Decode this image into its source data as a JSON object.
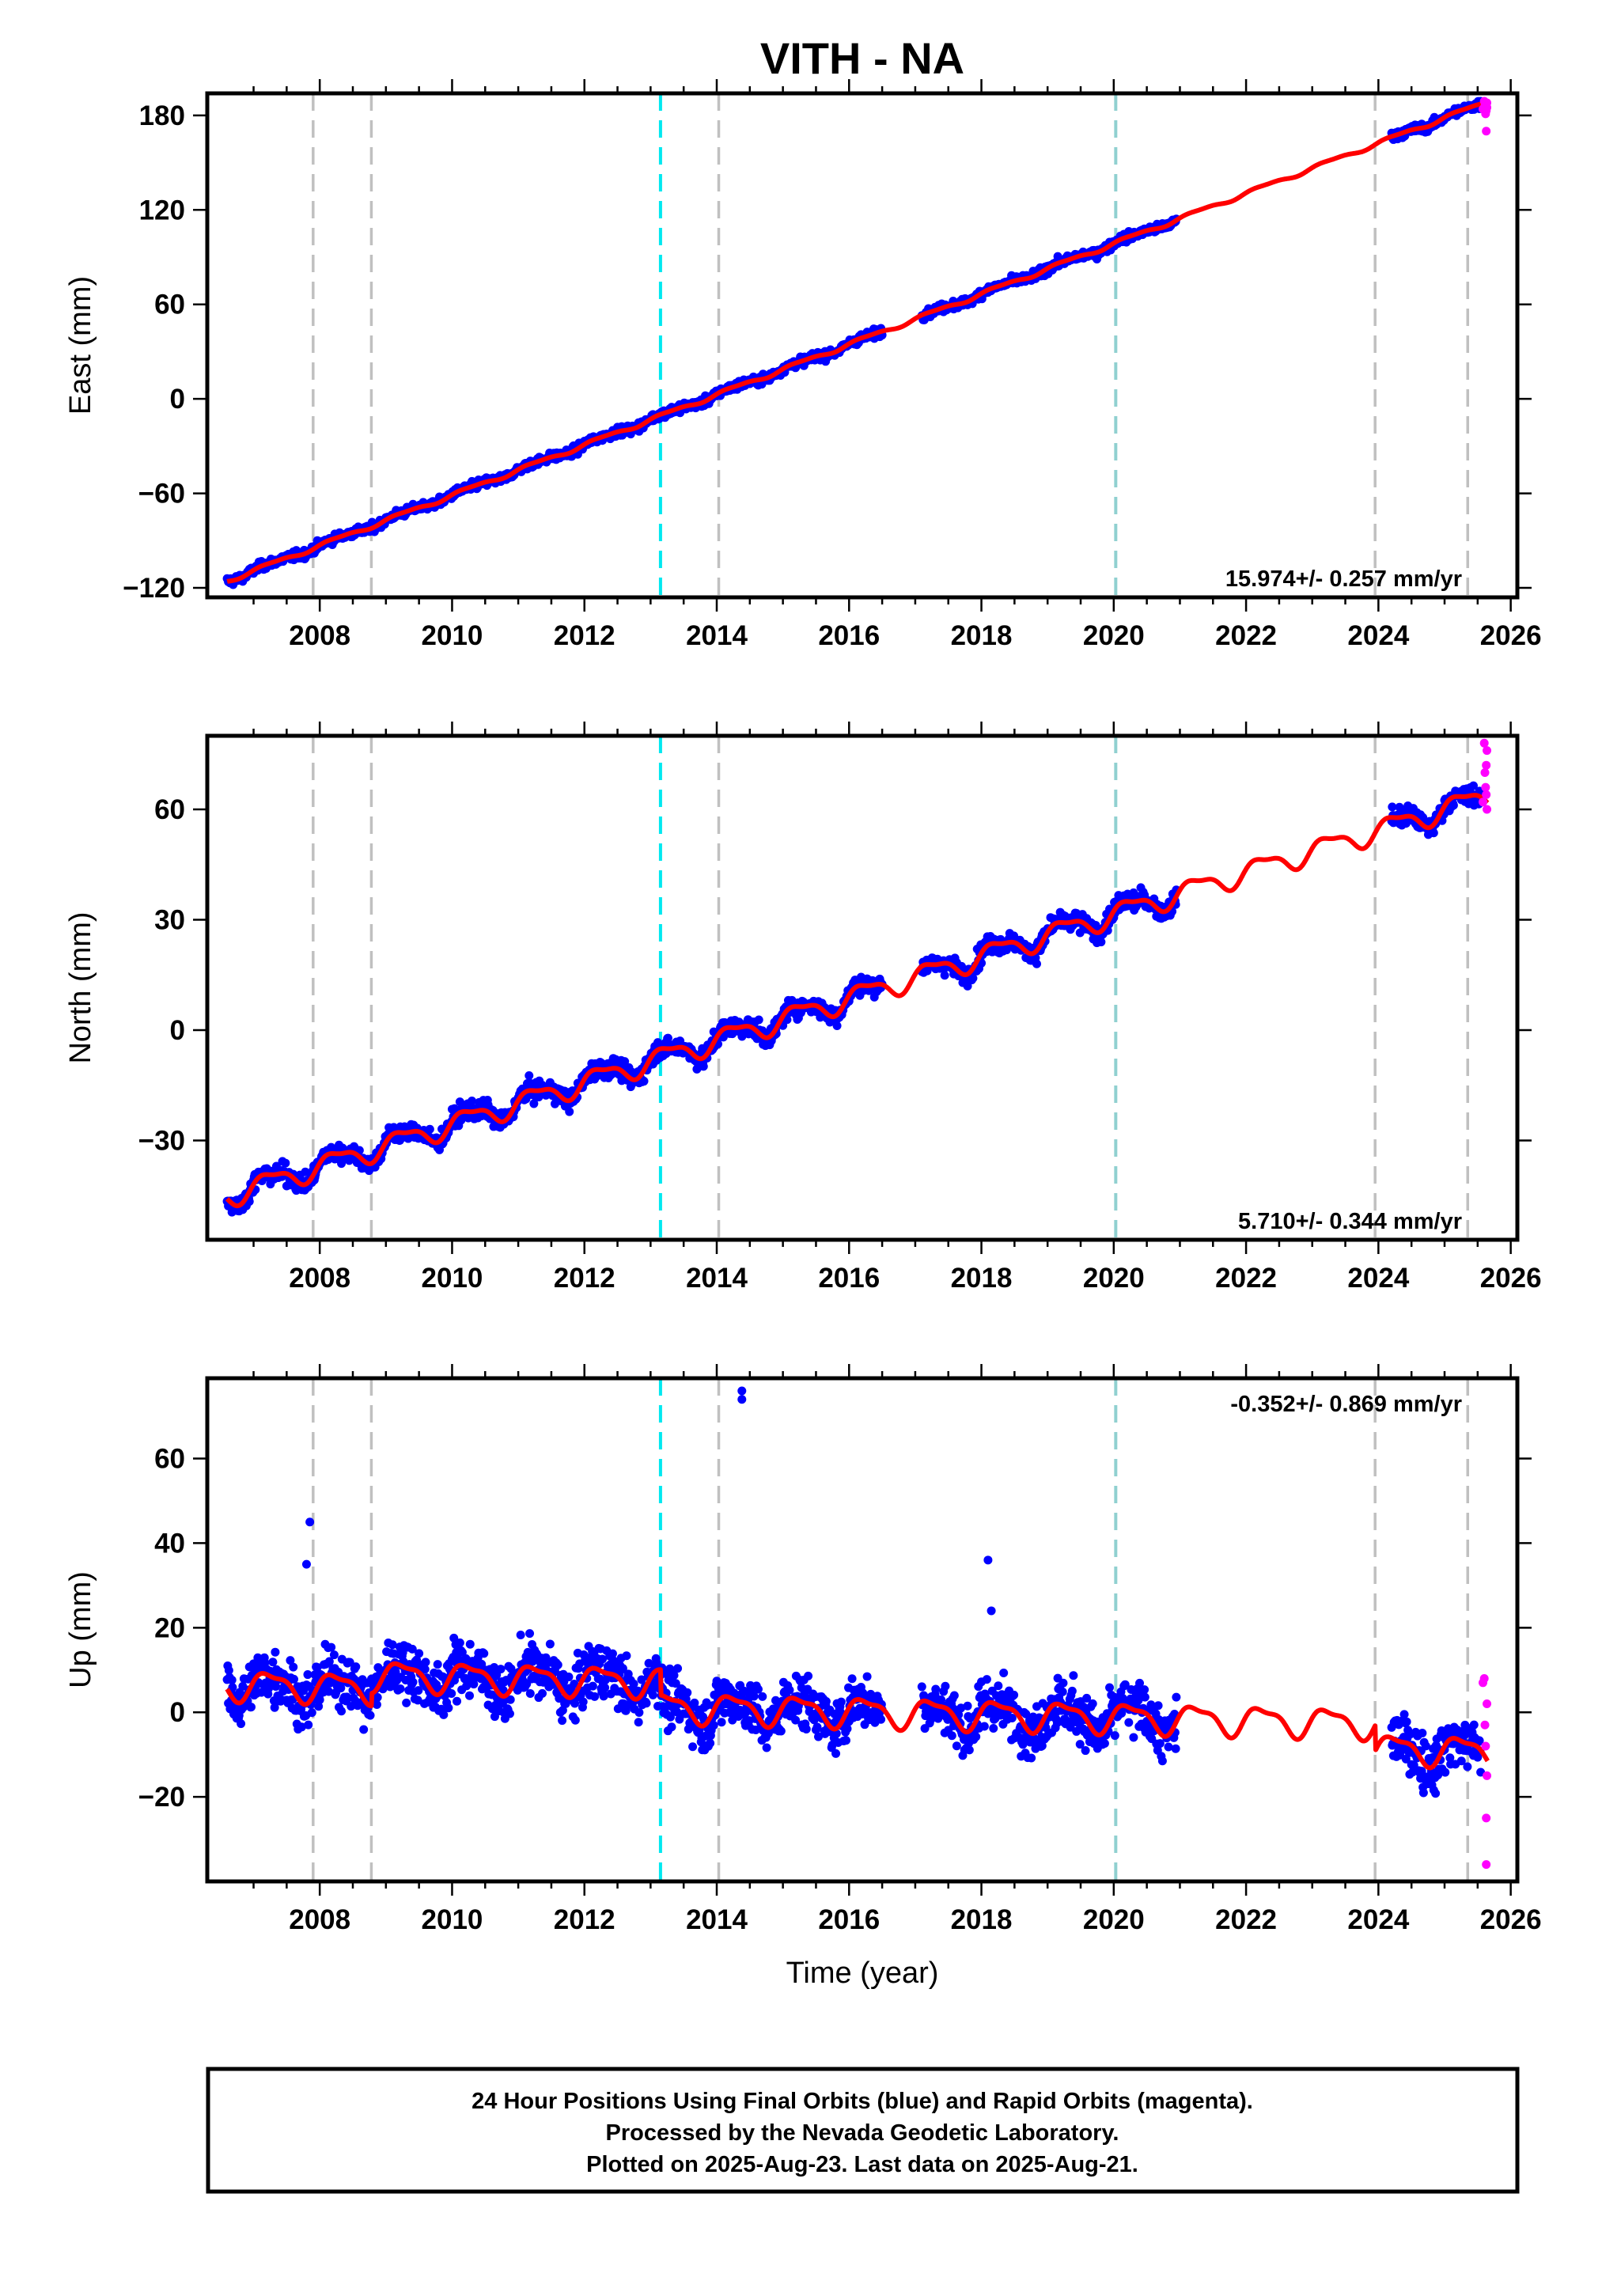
{
  "title": "VITH - NA",
  "xlabel": "Time (year)",
  "footer": [
    "24 Hour Positions Using Final Orbits (blue) and Rapid Orbits (magenta).",
    "Processed by the Nevada Geodetic Laboratory.",
    "Plotted on 2025-Aug-23. Last data on 2025-Aug-21."
  ],
  "colors": {
    "final": "#0000ff",
    "rapid": "#ff00ff",
    "model": "#ff0000",
    "event_gray": "#c0c0c0",
    "event_cyan": "#00e8f0",
    "event_teal": "#90d0d0"
  },
  "chart_data": [
    {
      "type": "scatter",
      "id": "east",
      "ylabel": "East (mm)",
      "rate_label": "15.974+/- 0.257 mm/yr",
      "rate": 15.974,
      "ylim": [
        -126,
        194
      ],
      "yticks": [
        -120,
        -60,
        0,
        60,
        120,
        180
      ],
      "xlim": [
        2006.3,
        2026.1
      ],
      "xticks": [
        2008,
        2010,
        2012,
        2014,
        2016,
        2018,
        2020,
        2022,
        2024,
        2026
      ],
      "rate_position": "bottom-right",
      "trend_start": [
        2006.6,
        -115.5
      ],
      "seasonal_amp": 1.2,
      "noise": 2.6,
      "offsets": [],
      "data_ranges": [
        [
          2006.6,
          2016.5
        ],
        [
          2017.1,
          2020.95
        ],
        [
          2024.2,
          2025.55
        ]
      ],
      "outliers": [],
      "rapid_points": [
        [
          2025.58,
          184
        ],
        [
          2025.6,
          189
        ],
        [
          2025.61,
          186
        ],
        [
          2025.62,
          181
        ],
        [
          2025.63,
          183
        ],
        [
          2025.63,
          170
        ],
        [
          2025.64,
          188
        ],
        [
          2025.64,
          185
        ]
      ],
      "events": [
        {
          "x": 2007.9,
          "kind": "gray"
        },
        {
          "x": 2008.78,
          "kind": "gray"
        },
        {
          "x": 2013.15,
          "kind": "cyan"
        },
        {
          "x": 2014.03,
          "kind": "gray"
        },
        {
          "x": 2020.03,
          "kind": "teal"
        },
        {
          "x": 2023.95,
          "kind": "gray"
        },
        {
          "x": 2025.35,
          "kind": "gray"
        }
      ]
    },
    {
      "type": "scatter",
      "id": "north",
      "ylabel": "North (mm)",
      "rate_label": "5.710+/- 0.344 mm/yr",
      "rate": 5.71,
      "ylim": [
        -57,
        80
      ],
      "yticks": [
        -30,
        0,
        30,
        60
      ],
      "xlim": [
        2006.3,
        2026.1
      ],
      "xticks": [
        2008,
        2010,
        2012,
        2014,
        2016,
        2018,
        2020,
        2022,
        2024,
        2026
      ],
      "rate_position": "bottom-right",
      "trend_start": [
        2006.6,
        -45
      ],
      "seasonal_amp": 2.8,
      "noise": 2.4,
      "offsets": [],
      "data_ranges": [
        [
          2006.6,
          2016.5
        ],
        [
          2017.1,
          2020.95
        ],
        [
          2024.2,
          2025.55
        ]
      ],
      "outliers": [],
      "rapid_points": [
        [
          2025.58,
          62
        ],
        [
          2025.6,
          78
        ],
        [
          2025.61,
          70
        ],
        [
          2025.62,
          66
        ],
        [
          2025.63,
          64
        ],
        [
          2025.63,
          72
        ],
        [
          2025.64,
          60
        ],
        [
          2025.64,
          76
        ]
      ],
      "events": [
        {
          "x": 2007.9,
          "kind": "gray"
        },
        {
          "x": 2008.78,
          "kind": "gray"
        },
        {
          "x": 2013.15,
          "kind": "cyan"
        },
        {
          "x": 2014.03,
          "kind": "gray"
        },
        {
          "x": 2020.03,
          "kind": "teal"
        },
        {
          "x": 2023.95,
          "kind": "gray"
        },
        {
          "x": 2025.35,
          "kind": "gray"
        }
      ]
    },
    {
      "type": "scatter",
      "id": "up",
      "ylabel": "Up (mm)",
      "rate_label": "-0.352+/- 0.869 mm/yr",
      "rate": -0.352,
      "ylim": [
        -40,
        79
      ],
      "yticks": [
        -20,
        0,
        20,
        40,
        60
      ],
      "xlim": [
        2006.3,
        2026.1
      ],
      "xticks": [
        2008,
        2010,
        2012,
        2014,
        2016,
        2018,
        2020,
        2022,
        2024,
        2026
      ],
      "rate_position": "top-right",
      "trend_start": [
        2006.6,
        6.5
      ],
      "seasonal_amp": 3.2,
      "noise": 6.0,
      "offsets": [
        [
          2008.78,
          3
        ],
        [
          2013.15,
          -6
        ],
        [
          2023.95,
          -6
        ]
      ],
      "data_ranges": [
        [
          2006.6,
          2016.5
        ],
        [
          2017.1,
          2020.95
        ],
        [
          2024.2,
          2025.55
        ]
      ],
      "outliers": [
        [
          2014.38,
          76
        ],
        [
          2014.38,
          74
        ],
        [
          2007.85,
          45
        ],
        [
          2007.8,
          35
        ],
        [
          2018.1,
          36
        ],
        [
          2018.15,
          24
        ]
      ],
      "rapid_points": [
        [
          2025.58,
          7
        ],
        [
          2025.6,
          8
        ],
        [
          2025.61,
          -3
        ],
        [
          2025.62,
          -8
        ],
        [
          2025.63,
          -25
        ],
        [
          2025.63,
          -36
        ],
        [
          2025.64,
          2
        ],
        [
          2025.64,
          -15
        ]
      ],
      "events": [
        {
          "x": 2007.9,
          "kind": "gray"
        },
        {
          "x": 2008.78,
          "kind": "gray"
        },
        {
          "x": 2013.15,
          "kind": "cyan"
        },
        {
          "x": 2014.03,
          "kind": "gray"
        },
        {
          "x": 2020.03,
          "kind": "teal"
        },
        {
          "x": 2023.95,
          "kind": "gray"
        },
        {
          "x": 2025.35,
          "kind": "gray"
        }
      ]
    }
  ]
}
